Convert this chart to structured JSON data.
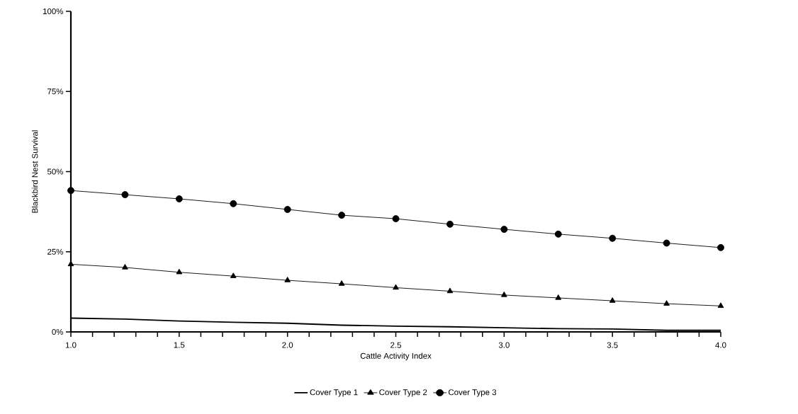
{
  "chart_data": {
    "type": "line",
    "xlabel": "Cattle Activity Index",
    "ylabel": "Blackbird Nest Survival",
    "legend": "bottom",
    "x": [
      1.0,
      1.25,
      1.5,
      1.75,
      2.0,
      2.25,
      2.5,
      2.75,
      3.0,
      3.25,
      3.5,
      3.75,
      4.0
    ],
    "xlim": [
      1.0,
      4.0
    ],
    "ylim": [
      0,
      100
    ],
    "xticks": [
      {
        "value": 1.0,
        "label": "1.0"
      },
      {
        "value": 1.1,
        "label": null
      },
      {
        "value": 1.2,
        "label": null
      },
      {
        "value": 1.3,
        "label": null
      },
      {
        "value": 1.4,
        "label": null
      },
      {
        "value": 1.5,
        "label": "1.5"
      },
      {
        "value": 1.6,
        "label": null
      },
      {
        "value": 1.7,
        "label": null
      },
      {
        "value": 1.8,
        "label": null
      },
      {
        "value": 1.9,
        "label": null
      },
      {
        "value": 2.0,
        "label": "2.0"
      },
      {
        "value": 2.1,
        "label": null
      },
      {
        "value": 2.2,
        "label": null
      },
      {
        "value": 2.3,
        "label": null
      },
      {
        "value": 2.4,
        "label": null
      },
      {
        "value": 2.5,
        "label": "2.5"
      },
      {
        "value": 2.6,
        "label": null
      },
      {
        "value": 2.7,
        "label": null
      },
      {
        "value": 2.8,
        "label": null
      },
      {
        "value": 2.9,
        "label": null
      },
      {
        "value": 3.0,
        "label": "3.0"
      },
      {
        "value": 3.1,
        "label": null
      },
      {
        "value": 3.2,
        "label": null
      },
      {
        "value": 3.3,
        "label": null
      },
      {
        "value": 3.4,
        "label": null
      },
      {
        "value": 3.5,
        "label": "3.5"
      },
      {
        "value": 3.6,
        "label": null
      },
      {
        "value": 3.7,
        "label": null
      },
      {
        "value": 3.8,
        "label": null
      },
      {
        "value": 3.9,
        "label": null
      },
      {
        "value": 4.0,
        "label": "4.0"
      }
    ],
    "yticks": [
      {
        "value": 0,
        "label": "0%"
      },
      {
        "value": 25,
        "label": "25%"
      },
      {
        "value": 50,
        "label": "50%"
      },
      {
        "value": 75,
        "label": "75%"
      },
      {
        "value": 100,
        "label": "100%"
      }
    ],
    "series": [
      {
        "name": "Cover Type 1",
        "color": "#000000",
        "marker": "none",
        "values": [
          4.3,
          4.0,
          3.4,
          3.0,
          2.7,
          2.1,
          1.8,
          1.6,
          1.3,
          1.0,
          0.9,
          0.5,
          0.5
        ]
      },
      {
        "name": "Cover Type 2",
        "color": "#000000",
        "marker": "triangle",
        "values": [
          21.1,
          20.1,
          18.6,
          17.4,
          16.1,
          15.0,
          13.8,
          12.7,
          11.5,
          10.6,
          9.7,
          8.8,
          8.1
        ]
      },
      {
        "name": "Cover Type 3",
        "color": "#000000",
        "marker": "circle",
        "values": [
          44.1,
          42.8,
          41.5,
          40.0,
          38.2,
          36.4,
          35.3,
          33.6,
          32.0,
          30.5,
          29.2,
          27.7,
          26.3
        ]
      }
    ]
  }
}
